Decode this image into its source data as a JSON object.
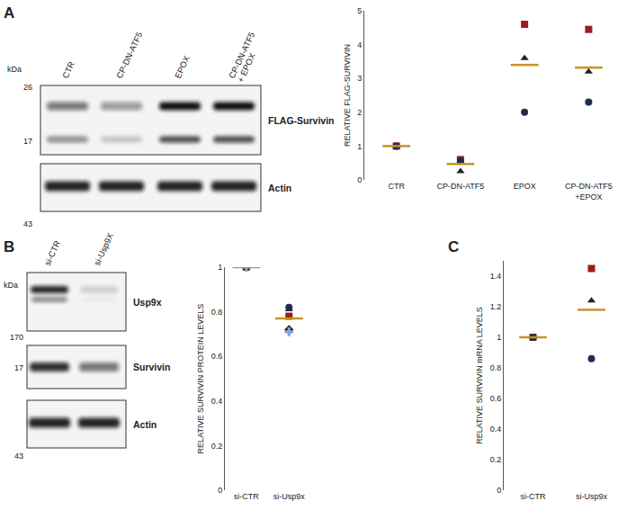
{
  "panels": [
    "A",
    "B",
    "C"
  ],
  "blots": [
    {
      "kda_label": "kDa",
      "lanes": [
        "CTR",
        "CP-DN-ATF5",
        "EPOX",
        "CP-DN-ATF5\n+ EPOX"
      ],
      "rows": [
        {
          "label": "FLAG-Survivin",
          "markers": [
            26,
            17
          ]
        },
        {
          "label": "Actin",
          "markers": [
            43
          ]
        }
      ]
    },
    {
      "kda_label": "kDa",
      "lanes": [
        "si-CTR",
        "si-Usp9X"
      ],
      "rows": [
        {
          "label": "Usp9x",
          "markers": [
            170
          ]
        },
        {
          "label": "Survivin",
          "markers": [
            17
          ]
        },
        {
          "label": "Actin",
          "markers": [
            43
          ]
        }
      ]
    }
  ],
  "chart_data": [
    {
      "type": "scatter",
      "categories": [
        "CTR",
        "CP-DN-ATF5",
        "EPOX",
        "CP-DN-ATF5\n+EPOX"
      ],
      "y_label": "RELATIVE FLAG-SURVIVIN",
      "ylim": [
        0,
        5
      ],
      "yticks": [
        0,
        1,
        2,
        3,
        4,
        5
      ],
      "grid": false,
      "series": [
        {
          "marker": "square",
          "color": "#9b1c1c",
          "values": [
            1,
            0.6,
            4.6,
            4.45
          ]
        },
        {
          "marker": "triangle-up",
          "color": "#222222",
          "values": [
            1,
            0.25,
            3.6,
            3.2
          ]
        },
        {
          "marker": "circle",
          "color": "#1f2d4d",
          "values": [
            1,
            0.55,
            2.0,
            2.3
          ]
        },
        {
          "marker": "line-ew",
          "color": "#c8941e",
          "values": [
            1,
            0.47,
            3.4,
            3.32
          ]
        }
      ]
    },
    {
      "type": "scatter",
      "categories": [
        "si-CTR",
        "si-Usp9x"
      ],
      "y_label": "RELATIVE SURVIVIN PROTEIN LEVELS",
      "ylim": [
        0,
        1
      ],
      "yticks": [
        0,
        0.2,
        0.4,
        0.6,
        0.8,
        1
      ],
      "grid": false,
      "series": [
        {
          "marker": "square",
          "color": "#9b1c1c",
          "values": [
            1,
            0.78
          ]
        },
        {
          "marker": "triangle-up",
          "color": "#222222",
          "values": [
            1,
            0.81
          ]
        },
        {
          "marker": "circle",
          "color": "#1f2d4d",
          "values": [
            1,
            0.82
          ]
        },
        {
          "marker": "diamond",
          "color": "#222222",
          "values": [
            1,
            0.72
          ]
        },
        {
          "marker": "cross",
          "color": "#7fa7d9",
          "values": [
            1,
            0.71
          ]
        },
        {
          "marker": "line-ew",
          "color": "#c8941e",
          "values": [
            1,
            0.77
          ]
        }
      ]
    },
    {
      "type": "scatter",
      "categories": [
        "si-CTR",
        "si-Usp9x"
      ],
      "y_label": "RELATIVE SURVIVIN mRNA LEVELS",
      "ylim": [
        0,
        1.5
      ],
      "yticks": [
        0,
        0.2,
        0.4,
        0.6,
        0.8,
        1,
        1.2,
        1.4
      ],
      "grid": false,
      "series": [
        {
          "marker": "square",
          "color": "#9b1c1c",
          "values": [
            1,
            1.45
          ]
        },
        {
          "marker": "triangle-up",
          "color": "#222222",
          "values": [
            1,
            1.24
          ]
        },
        {
          "marker": "circle",
          "color": "#1f2d4d",
          "values": [
            1,
            0.86
          ]
        },
        {
          "marker": "line-ew",
          "color": "#c8941e",
          "values": [
            1,
            1.18
          ]
        }
      ]
    }
  ]
}
